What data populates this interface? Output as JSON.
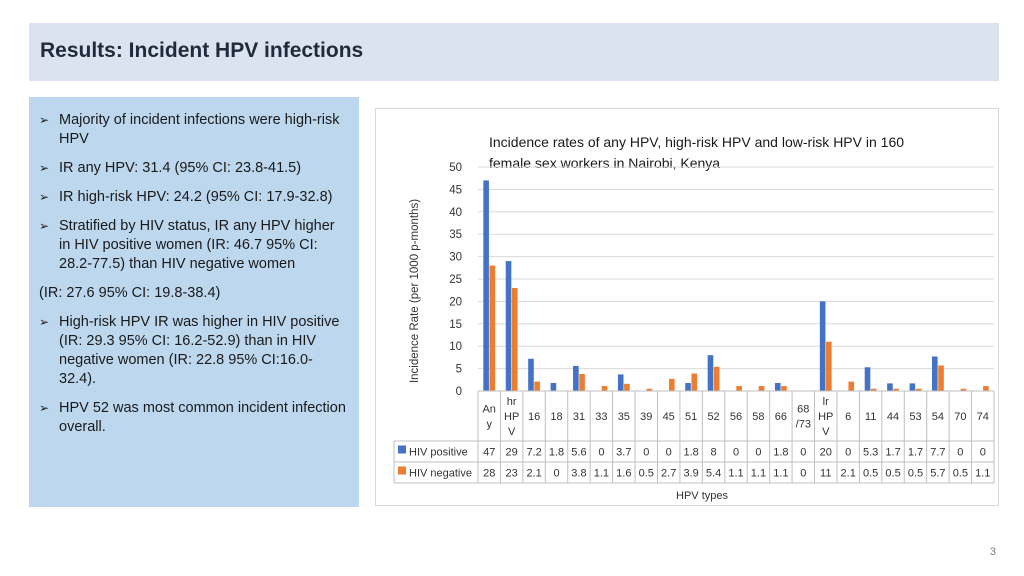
{
  "slide": {
    "title": "Results:  Incident HPV infections",
    "page_number": "3"
  },
  "bullets": [
    {
      "marker": "arrow",
      "text": "Majority of incident infections were high-risk HPV"
    },
    {
      "marker": "arrow",
      "text": "IR any HPV: 31.4 (95% CI: 23.8-41.5)"
    },
    {
      "marker": "arrow",
      "text": "IR high-risk HPV: 24.2 (95% CI: 17.9-32.8)"
    },
    {
      "marker": "arrow",
      "text": "Stratified by HIV status, IR any HPV higher in HIV positive women (IR: 46.7 95% CI: 28.2-77.5)  than HIV negative women"
    },
    {
      "marker": "none",
      "text": "(IR: 27.6 95% CI: 19.8-38.4)"
    },
    {
      "marker": "arrow",
      "text": "High-risk HPV IR was higher in HIV positive (IR: 29.3 95% CI: 16.2-52.9) than in HIV negative women (IR: 22.8 95% CI:16.0-32.4)."
    },
    {
      "marker": "arrow",
      "text": "HPV 52 was most common incident infection overall."
    }
  ],
  "chart_data": {
    "type": "bar",
    "title": "Incidence rates of any HPV, high-risk HPV and low-risk HPV in 160 female sex workers in Nairobi, Kenya",
    "xlabel": "HPV types",
    "ylabel": "Incidence Rate (per 1000 p-months)",
    "ylim": [
      0,
      50
    ],
    "yticks": [
      0,
      5,
      10,
      15,
      20,
      25,
      30,
      35,
      40,
      45,
      50
    ],
    "grid": true,
    "legend": "data-table",
    "categories": [
      [
        "An",
        "y"
      ],
      [
        "hr",
        "HP",
        "V"
      ],
      [
        "16"
      ],
      [
        "18"
      ],
      [
        "31"
      ],
      [
        "33"
      ],
      [
        "35"
      ],
      [
        "39"
      ],
      [
        "45"
      ],
      [
        "51"
      ],
      [
        "52"
      ],
      [
        "56"
      ],
      [
        "58"
      ],
      [
        "66"
      ],
      [
        "68",
        "/73"
      ],
      [
        "lr",
        "HP",
        "V"
      ],
      [
        "6"
      ],
      [
        "11"
      ],
      [
        "44"
      ],
      [
        "53"
      ],
      [
        "54"
      ],
      [
        "70"
      ],
      [
        "74"
      ]
    ],
    "series": [
      {
        "name": "HIV positive",
        "color": "#4472c4",
        "values": [
          47,
          29,
          7.2,
          1.8,
          5.6,
          0,
          3.7,
          0,
          0,
          1.8,
          8,
          0,
          0,
          1.8,
          0,
          20,
          0,
          5.3,
          1.7,
          1.7,
          7.7,
          0,
          0
        ],
        "labels": [
          "47",
          "29",
          "7.2",
          "1.8",
          "5.6",
          "0",
          "3.7",
          "0",
          "0",
          "1.8",
          "8",
          "0",
          "0",
          "1.8",
          "0",
          "20",
          "0",
          "5.3",
          "1.7",
          "1.7",
          "7.7",
          "0",
          "0"
        ]
      },
      {
        "name": "HIV negative",
        "color": "#ed7d31",
        "values": [
          28,
          23,
          2.1,
          0,
          3.8,
          1.1,
          1.6,
          0.5,
          2.7,
          3.9,
          5.4,
          1.1,
          1.1,
          1.1,
          0,
          11,
          2.1,
          0.5,
          0.5,
          0.5,
          5.7,
          0.5,
          1.1
        ],
        "labels": [
          "28",
          "23",
          "2.1",
          "0",
          "3.8",
          "1.1",
          "1.6",
          "0.5",
          "2.7",
          "3.9",
          "5.4",
          "1.1",
          "1.1",
          "1.1",
          "0",
          "11",
          "2.1",
          "0.5",
          "0.5",
          "0.5",
          "5.7",
          "0.5",
          "1.1"
        ]
      }
    ]
  }
}
